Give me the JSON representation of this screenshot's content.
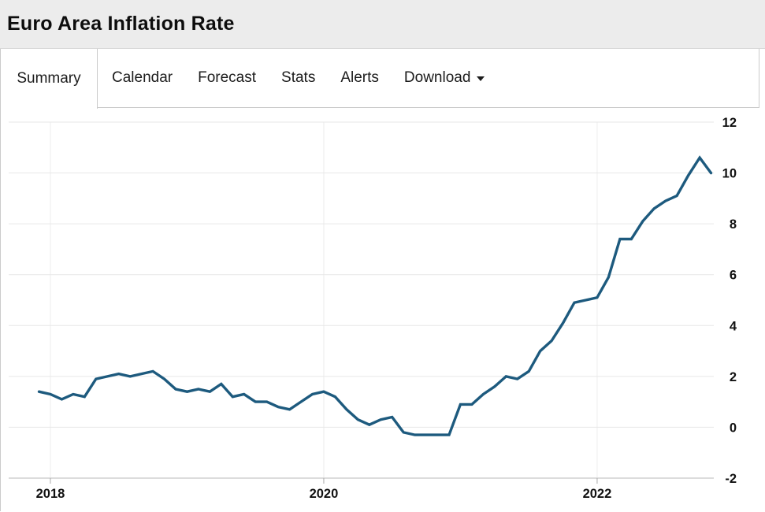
{
  "header": {
    "title": "Euro Area Inflation Rate"
  },
  "tabs": {
    "items": [
      {
        "label": "Summary",
        "active": true
      },
      {
        "label": "Calendar",
        "active": false
      },
      {
        "label": "Forecast",
        "active": false
      },
      {
        "label": "Stats",
        "active": false
      },
      {
        "label": "Alerts",
        "active": false
      },
      {
        "label": "Download",
        "active": false,
        "has_caret": true
      }
    ]
  },
  "chart_data": {
    "type": "line",
    "title": "Euro Area Inflation Rate",
    "unit": "percent",
    "line_color": "#1d5a7e",
    "grid": true,
    "legend": "none",
    "ylim": [
      -2,
      12
    ],
    "yticks": [
      12,
      10,
      8,
      6,
      4,
      2,
      0,
      -2
    ],
    "xticks": [
      "2018",
      "2020",
      "2022"
    ],
    "x": [
      "2017-12",
      "2018-01",
      "2018-02",
      "2018-03",
      "2018-04",
      "2018-05",
      "2018-06",
      "2018-07",
      "2018-08",
      "2018-09",
      "2018-10",
      "2018-11",
      "2018-12",
      "2019-01",
      "2019-02",
      "2019-03",
      "2019-04",
      "2019-05",
      "2019-06",
      "2019-07",
      "2019-08",
      "2019-09",
      "2019-10",
      "2019-11",
      "2019-12",
      "2020-01",
      "2020-02",
      "2020-03",
      "2020-04",
      "2020-05",
      "2020-06",
      "2020-07",
      "2020-08",
      "2020-09",
      "2020-10",
      "2020-11",
      "2020-12",
      "2021-01",
      "2021-02",
      "2021-03",
      "2021-04",
      "2021-05",
      "2021-06",
      "2021-07",
      "2021-08",
      "2021-09",
      "2021-10",
      "2021-11",
      "2021-12",
      "2022-01",
      "2022-02",
      "2022-03",
      "2022-04",
      "2022-05",
      "2022-06",
      "2022-07",
      "2022-08",
      "2022-09",
      "2022-10",
      "2022-11"
    ],
    "values": [
      1.4,
      1.3,
      1.1,
      1.3,
      1.2,
      1.9,
      2.0,
      2.1,
      2.0,
      2.1,
      2.2,
      1.9,
      1.5,
      1.4,
      1.5,
      1.4,
      1.7,
      1.2,
      1.3,
      1.0,
      1.0,
      0.8,
      0.7,
      1.0,
      1.3,
      1.4,
      1.2,
      0.7,
      0.3,
      0.1,
      0.3,
      0.4,
      -0.2,
      -0.3,
      -0.3,
      -0.3,
      -0.3,
      0.9,
      0.9,
      1.3,
      1.6,
      2.0,
      1.9,
      2.2,
      3.0,
      3.4,
      4.1,
      4.9,
      5.0,
      5.1,
      5.9,
      7.4,
      7.4,
      8.1,
      8.6,
      8.9,
      9.1,
      9.9,
      10.6,
      10.0
    ]
  }
}
